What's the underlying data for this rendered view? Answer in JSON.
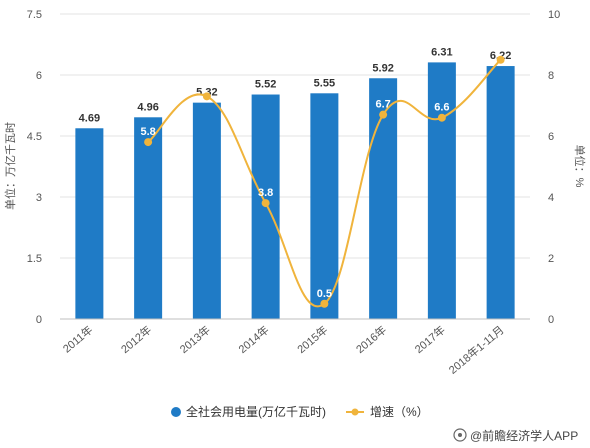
{
  "chart_data": {
    "type": "bar",
    "categories": [
      "2011年",
      "2012年",
      "2013年",
      "2014年",
      "2015年",
      "2016年",
      "2017年",
      "2018年1-11月"
    ],
    "series": [
      {
        "name": "全社会用电量(万亿千瓦时)",
        "type": "bar",
        "axis": "left",
        "color": "#1f7bc6",
        "values": [
          4.69,
          4.96,
          5.32,
          5.52,
          5.55,
          5.92,
          6.31,
          6.22
        ],
        "labels": [
          "4.69",
          "4.96",
          "5.32",
          "5.52",
          "5.55",
          "5.92",
          "6.31",
          "6.22"
        ]
      },
      {
        "name": "增速（%）",
        "type": "line",
        "axis": "right",
        "color": "#f0b43c",
        "values": [
          null,
          5.8,
          7.3,
          3.8,
          0.5,
          6.7,
          6.6,
          8.5
        ],
        "labels": [
          "",
          "5.8",
          "",
          "3.8",
          "0.5",
          "6.7",
          "6.6",
          ""
        ]
      }
    ],
    "y_left": {
      "label": "单位：万亿千瓦时",
      "ylim": [
        0,
        7.5
      ],
      "ticks": [
        "0",
        "1.5",
        "3",
        "4.5",
        "6",
        "7.5"
      ],
      "tick_values": [
        0,
        1.5,
        3,
        4.5,
        6,
        7.5
      ]
    },
    "y_right": {
      "label": "单位：%",
      "ylim": [
        0,
        10
      ],
      "ticks": [
        "0",
        "2",
        "4",
        "6",
        "8",
        "10"
      ],
      "tick_values": [
        0,
        2,
        4,
        6,
        8,
        10
      ]
    },
    "grid": true,
    "legend": "bottom-center"
  },
  "watermark": {
    "text": "@前瞻经济学人APP"
  }
}
